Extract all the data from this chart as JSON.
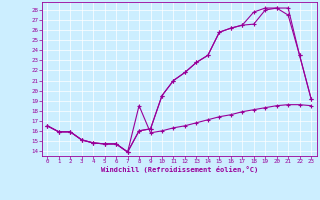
{
  "xlabel": "Windchill (Refroidissement éolien,°C)",
  "bg_color": "#cceeff",
  "line_color": "#990099",
  "xlim": [
    -0.5,
    23.5
  ],
  "ylim": [
    13.5,
    28.8
  ],
  "xticks": [
    0,
    1,
    2,
    3,
    4,
    5,
    6,
    7,
    8,
    9,
    10,
    11,
    12,
    13,
    14,
    15,
    16,
    17,
    18,
    19,
    20,
    21,
    22,
    23
  ],
  "yticks": [
    14,
    15,
    16,
    17,
    18,
    19,
    20,
    21,
    22,
    23,
    24,
    25,
    26,
    27,
    28
  ],
  "line1_x": [
    0,
    1,
    2,
    3,
    4,
    5,
    6,
    7,
    8,
    9,
    10,
    11,
    12,
    13,
    14,
    15,
    16,
    17,
    18,
    19,
    20,
    21,
    22,
    23
  ],
  "line1_y": [
    16.5,
    15.9,
    15.9,
    15.1,
    14.8,
    14.7,
    14.7,
    13.9,
    18.5,
    15.8,
    16.0,
    16.3,
    16.5,
    16.8,
    17.1,
    17.4,
    17.6,
    17.9,
    18.1,
    18.3,
    18.5,
    18.6,
    18.6,
    18.5
  ],
  "line2_x": [
    0,
    1,
    2,
    3,
    4,
    5,
    6,
    7,
    8,
    9,
    10,
    11,
    12,
    13,
    14,
    15,
    16,
    17,
    18,
    19,
    20,
    21,
    22,
    23
  ],
  "line2_y": [
    16.5,
    15.9,
    15.9,
    15.1,
    14.8,
    14.7,
    14.7,
    13.9,
    16.0,
    16.2,
    19.5,
    21.0,
    21.8,
    22.8,
    23.5,
    25.8,
    26.2,
    26.5,
    27.8,
    28.2,
    28.2,
    27.5,
    23.5,
    19.2
  ],
  "line3_x": [
    0,
    1,
    2,
    3,
    4,
    5,
    6,
    7,
    8,
    9,
    10,
    11,
    12,
    13,
    14,
    15,
    16,
    17,
    18,
    19,
    20,
    21,
    22,
    23
  ],
  "line3_y": [
    16.5,
    15.9,
    15.9,
    15.1,
    14.8,
    14.7,
    14.7,
    13.9,
    16.0,
    16.2,
    19.5,
    21.0,
    21.8,
    22.8,
    23.5,
    25.8,
    26.2,
    26.5,
    26.6,
    28.0,
    28.2,
    28.2,
    23.5,
    19.2
  ]
}
